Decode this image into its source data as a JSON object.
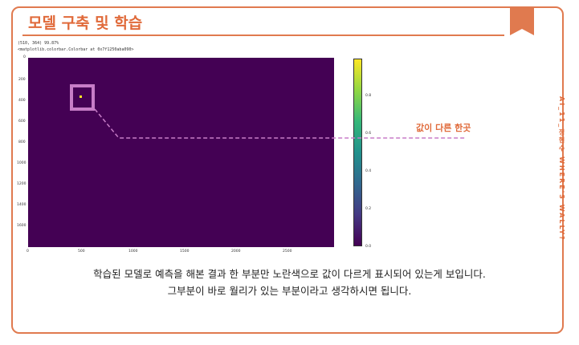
{
  "title": "모델 구축 및 학습",
  "side_text": "AI_11_정현수 WHERE'S WALLY?",
  "meta": {
    "line1": "(510, 364) 99.87%",
    "line2": "<matplotlib.colorbar.Colorbar at 0x7f1250aba090>"
  },
  "plot": {
    "y_ticks": [
      "0",
      "200",
      "400",
      "600",
      "800",
      "1000",
      "1200",
      "1400",
      "1600"
    ],
    "x_ticks": [
      "0",
      "500",
      "1000",
      "1500",
      "2000",
      "2500"
    ],
    "colorbar_ticks": [
      "0.8",
      "0.6",
      "0.4",
      "0.2",
      "0.0"
    ]
  },
  "callout": "값이 다른 한곳",
  "caption": {
    "line1": "학습된 모델로 예측을 해본 결과 한 부분만 노란색으로 값이 다르게 표시되어 있는게 보입니다.",
    "line2": "그부분이 바로 월리가 있는 부분이라고 생각하시면 됩니다."
  },
  "colors": {
    "accent": "#e06a3a",
    "plot_background": "#440154",
    "highlight": "#c77dc7",
    "dot": "#fde725"
  }
}
